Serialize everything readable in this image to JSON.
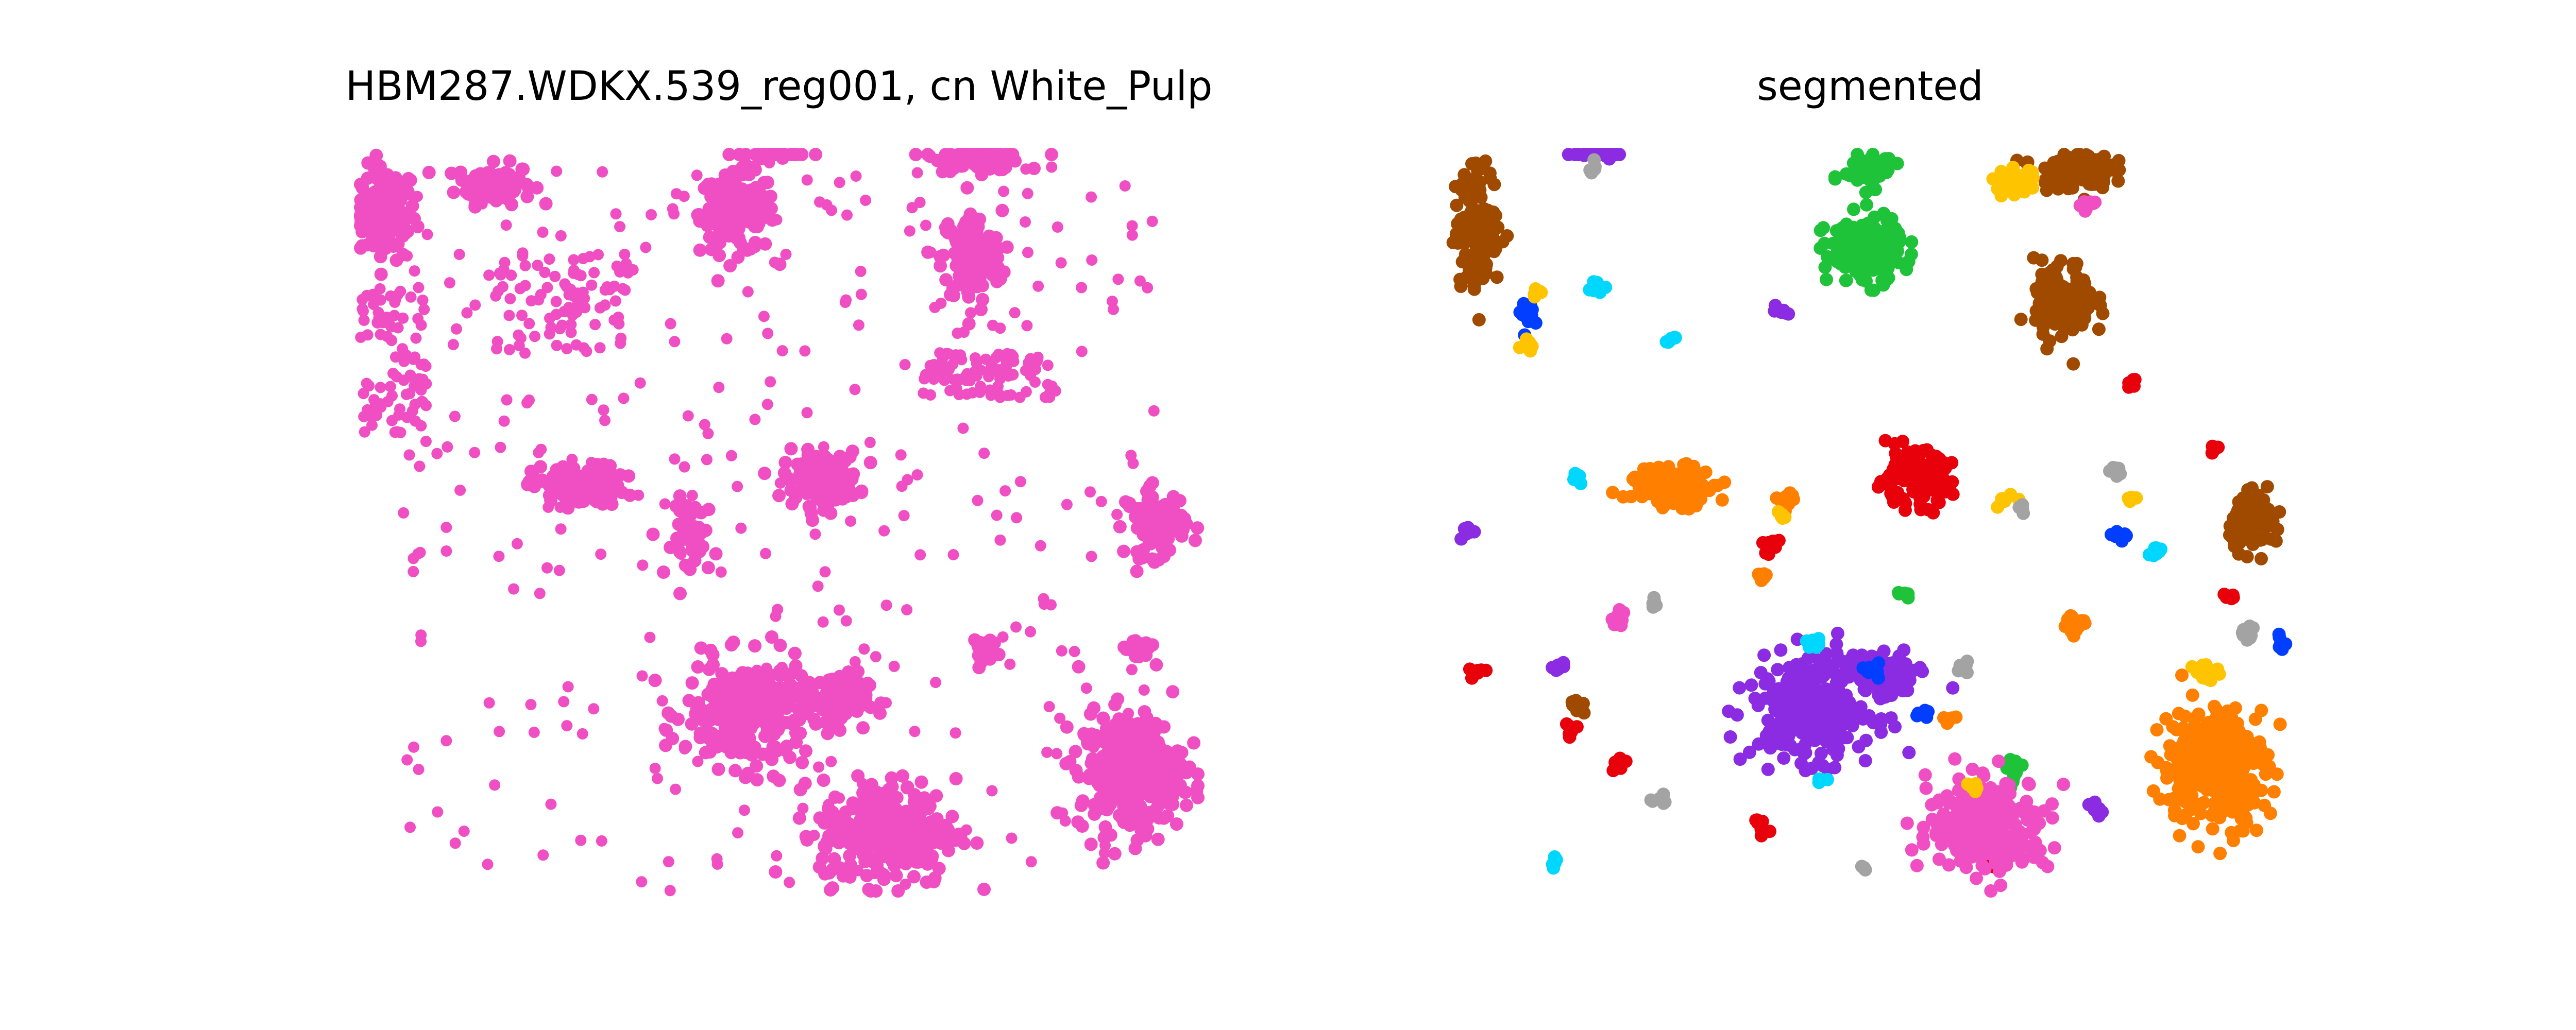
{
  "figure": {
    "left_title": "HBM287.WDKX.539_reg001, cn White_Pulp",
    "right_title": "segmented"
  },
  "chart_data": [
    {
      "type": "scatter",
      "title": "HBM287.WDKX.539_reg001, cn White_Pulp",
      "axes_visible": false,
      "xlim": [
        0,
        100
      ],
      "ylim": [
        0,
        100
      ],
      "series": [
        {
          "color": "#f04fc3",
          "clusters": [
            {
              "x": 3,
              "y": 92,
              "rx": 4,
              "ry": 7,
              "n": 120
            },
            {
              "x": 16,
              "y": 96,
              "rx": 5,
              "ry": 3,
              "n": 90
            },
            {
              "x": 24,
              "y": 80,
              "rx": 8,
              "ry": 7,
              "n": 90,
              "sparse": true
            },
            {
              "x": 45,
              "y": 92,
              "rx": 5,
              "ry": 6,
              "n": 160
            },
            {
              "x": 50,
              "y": 101,
              "rx": 4,
              "ry": 2,
              "n": 50
            },
            {
              "x": 74,
              "y": 100,
              "rx": 6,
              "ry": 2.5,
              "n": 90
            },
            {
              "x": 73,
              "y": 86,
              "rx": 4,
              "ry": 7,
              "n": 130
            },
            {
              "x": 75,
              "y": 70,
              "rx": 8,
              "ry": 3,
              "n": 100,
              "sparse": true
            },
            {
              "x": 4,
              "y": 72,
              "rx": 4,
              "ry": 10,
              "n": 90,
              "sparse": true
            },
            {
              "x": 26,
              "y": 55,
              "rx": 6,
              "ry": 3,
              "n": 120
            },
            {
              "x": 55,
              "y": 56,
              "rx": 5,
              "ry": 4,
              "n": 130
            },
            {
              "x": 40,
              "y": 48,
              "rx": 3,
              "ry": 6,
              "n": 50
            },
            {
              "x": 95,
              "y": 50,
              "rx": 4,
              "ry": 5,
              "n": 90
            },
            {
              "x": 46,
              "y": 24,
              "rx": 8,
              "ry": 8,
              "n": 280
            },
            {
              "x": 57,
              "y": 26,
              "rx": 4,
              "ry": 4,
              "n": 90
            },
            {
              "x": 63,
              "y": 8,
              "rx": 9,
              "ry": 8,
              "n": 300
            },
            {
              "x": 92,
              "y": 16,
              "rx": 7,
              "ry": 9,
              "n": 320
            },
            {
              "x": 93,
              "y": 33,
              "rx": 2,
              "ry": 2,
              "n": 25
            },
            {
              "x": 74,
              "y": 33,
              "rx": 1.5,
              "ry": 2,
              "n": 18
            },
            {
              "x": 50,
              "y": 75,
              "rx": 45,
              "ry": 25,
              "n": 180,
              "sparse": true
            },
            {
              "x": 50,
              "y": 25,
              "rx": 45,
              "ry": 25,
              "n": 140,
              "sparse": true
            }
          ]
        }
      ]
    },
    {
      "type": "scatter",
      "title": "segmented",
      "axes_visible": false,
      "xlim": [
        0,
        100
      ],
      "ylim": [
        0,
        100
      ],
      "series": [
        {
          "color": "#a04a00",
          "clusters": [
            {
              "x": 3,
              "y": 90,
              "rx": 3,
              "ry": 9,
              "n": 160
            },
            {
              "x": 74,
              "y": 98,
              "rx": 5,
              "ry": 3,
              "n": 110
            },
            {
              "x": 73,
              "y": 80,
              "rx": 4,
              "ry": 6,
              "n": 120
            },
            {
              "x": 96,
              "y": 50,
              "rx": 3.5,
              "ry": 4,
              "n": 90
            },
            {
              "x": 15,
              "y": 25,
              "rx": 1,
              "ry": 1.5,
              "n": 8
            }
          ]
        },
        {
          "color": "#8b2be2",
          "clusters": [
            {
              "x": 17,
              "y": 101,
              "rx": 4,
              "ry": 1.8,
              "n": 60
            },
            {
              "x": 43,
              "y": 25,
              "rx": 8,
              "ry": 8,
              "n": 300
            },
            {
              "x": 52,
              "y": 29,
              "rx": 4,
              "ry": 3.5,
              "n": 90
            },
            {
              "x": 2,
              "y": 49,
              "rx": 1,
              "ry": 1,
              "n": 10
            },
            {
              "x": 39,
              "y": 79,
              "rx": 1,
              "ry": 1,
              "n": 8
            },
            {
              "x": 13,
              "y": 30,
              "rx": 1,
              "ry": 1,
              "n": 8
            },
            {
              "x": 77,
              "y": 11,
              "rx": 1,
              "ry": 1,
              "n": 8
            }
          ]
        },
        {
          "color": "#1fc33a",
          "clusters": [
            {
              "x": 50,
              "y": 98,
              "rx": 3.5,
              "ry": 2.5,
              "n": 60
            },
            {
              "x": 49,
              "y": 87,
              "rx": 5,
              "ry": 5,
              "n": 170
            },
            {
              "x": 67,
              "y": 16,
              "rx": 1,
              "ry": 2,
              "n": 12
            },
            {
              "x": 54,
              "y": 40,
              "rx": 0.8,
              "ry": 0.8,
              "n": 6
            }
          ]
        },
        {
          "color": "#ff7f00",
          "clusters": [
            {
              "x": 26,
              "y": 55,
              "rx": 6,
              "ry": 3,
              "n": 120
            },
            {
              "x": 91,
              "y": 17,
              "rx": 7,
              "ry": 9,
              "n": 320
            },
            {
              "x": 74,
              "y": 36,
              "rx": 1.5,
              "ry": 2,
              "n": 20
            },
            {
              "x": 40,
              "y": 53,
              "rx": 1.5,
              "ry": 1.5,
              "n": 14
            },
            {
              "x": 37,
              "y": 43,
              "rx": 1,
              "ry": 1,
              "n": 8
            },
            {
              "x": 59,
              "y": 23,
              "rx": 1,
              "ry": 1,
              "n": 6
            }
          ]
        },
        {
          "color": "#e8000b",
          "clusters": [
            {
              "x": 55,
              "y": 56,
              "rx": 5,
              "ry": 4,
              "n": 140
            },
            {
              "x": 38,
              "y": 47,
              "rx": 1.5,
              "ry": 1.5,
              "n": 14
            },
            {
              "x": 3,
              "y": 30,
              "rx": 1,
              "ry": 1,
              "n": 8
            },
            {
              "x": 14,
              "y": 22,
              "rx": 1,
              "ry": 1,
              "n": 8
            },
            {
              "x": 20,
              "y": 17,
              "rx": 1,
              "ry": 1,
              "n": 8
            },
            {
              "x": 37,
              "y": 9,
              "rx": 1,
              "ry": 1,
              "n": 8
            },
            {
              "x": 81,
              "y": 69,
              "rx": 0.8,
              "ry": 0.8,
              "n": 6
            },
            {
              "x": 64,
              "y": 4,
              "rx": 1,
              "ry": 1,
              "n": 6
            },
            {
              "x": 91,
              "y": 60,
              "rx": 0.8,
              "ry": 0.8,
              "n": 6
            },
            {
              "x": 93,
              "y": 40,
              "rx": 0.8,
              "ry": 0.8,
              "n": 5
            }
          ]
        },
        {
          "color": "#f04fc3",
          "clusters": [
            {
              "x": 64,
              "y": 9,
              "rx": 8,
              "ry": 7,
              "n": 280
            },
            {
              "x": 76,
              "y": 93,
              "rx": 1,
              "ry": 1,
              "n": 8
            },
            {
              "x": 20,
              "y": 37,
              "rx": 1.2,
              "ry": 1,
              "n": 10
            }
          ]
        },
        {
          "color": "#023eff",
          "clusters": [
            {
              "x": 9,
              "y": 78,
              "rx": 1.2,
              "ry": 2,
              "n": 16
            },
            {
              "x": 80,
              "y": 48,
              "rx": 1,
              "ry": 1,
              "n": 8
            },
            {
              "x": 50,
              "y": 30,
              "rx": 1,
              "ry": 1,
              "n": 8
            },
            {
              "x": 56,
              "y": 24,
              "rx": 1,
              "ry": 1,
              "n": 6
            },
            {
              "x": 99,
              "y": 34,
              "rx": 0.8,
              "ry": 1.5,
              "n": 8
            }
          ]
        },
        {
          "color": "#00d7ff",
          "clusters": [
            {
              "x": 17,
              "y": 82,
              "rx": 1,
              "ry": 1,
              "n": 8
            },
            {
              "x": 26,
              "y": 75,
              "rx": 1,
              "ry": 1,
              "n": 8
            },
            {
              "x": 15,
              "y": 56,
              "rx": 0.8,
              "ry": 0.8,
              "n": 5
            },
            {
              "x": 84,
              "y": 46,
              "rx": 1.2,
              "ry": 1,
              "n": 10
            },
            {
              "x": 43,
              "y": 34,
              "rx": 1,
              "ry": 1,
              "n": 6
            },
            {
              "x": 12,
              "y": 4,
              "rx": 0.8,
              "ry": 0.8,
              "n": 5
            },
            {
              "x": 44,
              "y": 15,
              "rx": 0.8,
              "ry": 0.8,
              "n": 5
            }
          ]
        },
        {
          "color": "#ffc400",
          "clusters": [
            {
              "x": 67,
              "y": 96,
              "rx": 3,
              "ry": 2,
              "n": 40
            },
            {
              "x": 9,
              "y": 74,
              "rx": 1,
              "ry": 1,
              "n": 8
            },
            {
              "x": 10,
              "y": 81,
              "rx": 0.8,
              "ry": 0.8,
              "n": 5
            },
            {
              "x": 66,
              "y": 53,
              "rx": 1,
              "ry": 1,
              "n": 8
            },
            {
              "x": 81,
              "y": 53,
              "rx": 0.8,
              "ry": 0.8,
              "n": 5
            },
            {
              "x": 90,
              "y": 30,
              "rx": 1.5,
              "ry": 1.5,
              "n": 16
            },
            {
              "x": 39,
              "y": 51,
              "rx": 0.8,
              "ry": 0.8,
              "n": 5
            },
            {
              "x": 62,
              "y": 14,
              "rx": 0.8,
              "ry": 0.8,
              "n": 5
            }
          ]
        },
        {
          "color": "#a3a3a3",
          "clusters": [
            {
              "x": 17,
              "y": 98,
              "rx": 1,
              "ry": 1,
              "n": 6
            },
            {
              "x": 79,
              "y": 57,
              "rx": 1.2,
              "ry": 1,
              "n": 10
            },
            {
              "x": 68,
              "y": 52,
              "rx": 0.8,
              "ry": 0.8,
              "n": 5
            },
            {
              "x": 95,
              "y": 35,
              "rx": 1.2,
              "ry": 1.2,
              "n": 10
            },
            {
              "x": 24,
              "y": 39,
              "rx": 0.8,
              "ry": 0.8,
              "n": 5
            },
            {
              "x": 25,
              "y": 12,
              "rx": 1,
              "ry": 1,
              "n": 6
            },
            {
              "x": 49,
              "y": 3,
              "rx": 0.8,
              "ry": 0.8,
              "n": 5
            },
            {
              "x": 61,
              "y": 30,
              "rx": 0.8,
              "ry": 0.8,
              "n": 5
            }
          ]
        }
      ]
    }
  ]
}
